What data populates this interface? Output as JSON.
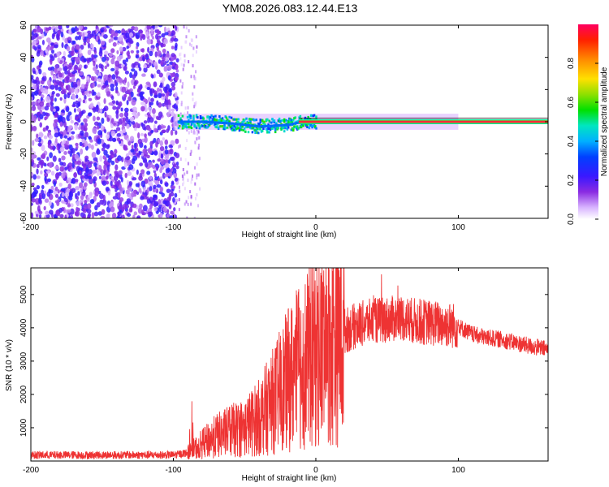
{
  "title": "YM08.2026.083.12.44.E13",
  "chart_data": [
    {
      "type": "heatmap",
      "title": "YM08.2026.083.12.44.E13",
      "xlabel": "Height of straight line (km)",
      "ylabel": "Frequency (Hz)",
      "xlim": [
        -200,
        163
      ],
      "ylim": [
        -60,
        60
      ],
      "xticks": [
        -200,
        -100,
        0,
        100
      ],
      "xtick_labels": [
        "-200",
        "-100",
        "0",
        "100"
      ],
      "yticks": [
        -60,
        -40,
        -20,
        0,
        20,
        40,
        60
      ],
      "ytick_labels": [
        "-60",
        "-40",
        "-20",
        "0",
        "20",
        "40",
        "60"
      ],
      "colorbar": {
        "label": "Normalized spectral amplitude",
        "range": [
          0,
          1
        ],
        "ticks": [
          0.0,
          0.2,
          0.4,
          0.6,
          0.8
        ],
        "tick_labels": [
          "0.0",
          "0.2",
          "0.4",
          "0.6",
          "0.8"
        ]
      },
      "regions": [
        {
          "name": "noise",
          "x": [
            -200,
            -97
          ],
          "freq": [
            -60,
            60
          ],
          "amplitude": [
            0.05,
            0.25
          ]
        },
        {
          "name": "transition",
          "x": [
            -97,
            -82
          ],
          "freq": [
            -60,
            60
          ],
          "amplitude": [
            0.02,
            0.12
          ]
        },
        {
          "name": "onset",
          "x": [
            -97,
            0
          ],
          "freq": [
            -6,
            6
          ],
          "amplitude": [
            0.3,
            0.6
          ]
        },
        {
          "name": "carrier",
          "x": [
            0,
            163
          ],
          "freq": [
            -1,
            1
          ],
          "amplitude": [
            0.85,
            1.0
          ]
        }
      ],
      "ridge": {
        "x": [
          -97,
          -80,
          -60,
          -40,
          -20,
          -10,
          0,
          20,
          50,
          100,
          163
        ],
        "freq": [
          0,
          0,
          -1,
          -3,
          -2,
          0,
          0,
          0,
          0,
          0,
          0
        ]
      }
    },
    {
      "type": "line",
      "xlabel": "Height of straight line (km)",
      "ylabel": "SNR (10 * v/v)",
      "xlim": [
        -200,
        163
      ],
      "ylim": [
        0,
        5800
      ],
      "xticks": [
        -200,
        -100,
        0,
        100
      ],
      "xtick_labels": [
        "-200",
        "-100",
        "0",
        "100"
      ],
      "yticks": [
        1000,
        2000,
        3000,
        4000,
        5000
      ],
      "ytick_labels": [
        "1000",
        "2000",
        "3000",
        "4000",
        "5000"
      ],
      "series": [
        {
          "name": "SNR",
          "color": "#ee3333",
          "x": [
            -200,
            -150,
            -100,
            -90,
            -80,
            -70,
            -60,
            -50,
            -40,
            -30,
            -20,
            -10,
            0,
            10,
            20,
            30,
            40,
            50,
            60,
            70,
            80,
            90,
            100,
            110,
            120,
            130,
            140,
            150,
            163
          ],
          "y": [
            180,
            180,
            180,
            250,
            500,
            750,
            900,
            1000,
            1300,
            1800,
            2400,
            2900,
            3300,
            3600,
            3900,
            4100,
            4200,
            4250,
            4300,
            4200,
            4150,
            4100,
            4050,
            3800,
            3700,
            3650,
            3550,
            3450,
            3350
          ]
        }
      ]
    }
  ],
  "colors": {
    "line": "#ee3333",
    "axis": "#000000",
    "background": "#ffffff"
  }
}
